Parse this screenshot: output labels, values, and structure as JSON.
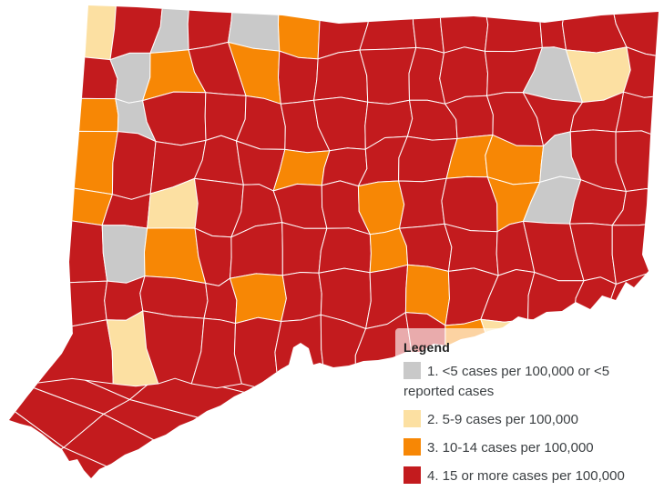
{
  "legend": {
    "title": "Legend",
    "items": [
      {
        "category": "1",
        "label": "1. <5 cases per 100,000 or <5 reported cases",
        "color": "#C9C9C9"
      },
      {
        "category": "2",
        "label": "2. 5-9 cases per 100,000",
        "color": "#FCE0A2"
      },
      {
        "category": "3",
        "label": "3. 10-14 cases per 100,000",
        "color": "#F78705"
      },
      {
        "category": "4",
        "label": "4. 15 or more cases per 100,000",
        "color": "#C31B1E"
      }
    ]
  },
  "map": {
    "name": "connecticut-towns-case-rate-choropleth",
    "border_color": "#FFFFFF",
    "category_colors": {
      "1": "#C9C9C9",
      "2": "#FCE0A2",
      "3": "#F78705",
      "4": "#C31B1E"
    },
    "grid": [
      "24141344444444",
      "41343444444124",
      "31444444444444",
      "34444344433144",
      "34244443443144",
      "41344443444444",
      "44443444344444",
      "42444444432444"
    ],
    "panhandle": "4444444444"
  }
}
